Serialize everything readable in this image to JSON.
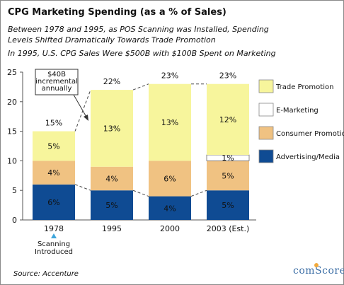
{
  "header": {
    "title": "CPG Marketing Spending (as a % of Sales)",
    "subtitle": "Between 1978 and 1995, as POS Scanning was Installed, Spending Levels Shifted Dramatically Towards Trade Promotion",
    "subtitle2": "In 1995, U.S. CPG Sales Were $500B with $100B Spent on Marketing"
  },
  "footer": {
    "source": "Source: Accenture",
    "logo_text": "comScore"
  },
  "colors": {
    "Advertising/Media": "#0f4b93",
    "Consumer Promotion": "#f0c282",
    "E-Marketing": "#ffffff",
    "Trade Promotion": "#f7f59c"
  },
  "chart_data": {
    "type": "bar",
    "stacked": true,
    "categories": [
      "1978",
      "1995",
      "2000",
      "2003 (Est.)"
    ],
    "series": [
      {
        "name": "Advertising/Media",
        "values": [
          6,
          5,
          4,
          5
        ]
      },
      {
        "name": "Consumer Promotion",
        "values": [
          4,
          4,
          6,
          5
        ]
      },
      {
        "name": "E-Marketing",
        "values": [
          0,
          0,
          0,
          1
        ]
      },
      {
        "name": "Trade Promotion",
        "values": [
          5,
          13,
          13,
          12
        ]
      }
    ],
    "segment_labels": [
      [
        "6%",
        "4%",
        "",
        "5%"
      ],
      [
        "5%",
        "4%",
        "",
        "13%"
      ],
      [
        "4%",
        "6%",
        "",
        "13%"
      ],
      [
        "5%",
        "5%",
        "1%",
        "12%"
      ]
    ],
    "totals": [
      "15%",
      "22%",
      "23%",
      "23%"
    ],
    "ylim": [
      0,
      25
    ],
    "yticks": [
      0,
      5,
      10,
      15,
      20,
      25
    ],
    "legend": [
      "Trade Promotion",
      "E-Marketing",
      "Consumer Promotion",
      "Advertising/Media"
    ],
    "legend_position": "right",
    "annotations": {
      "callout": "$40B incremental annually",
      "marker_label": "Scanning Introduced"
    }
  }
}
